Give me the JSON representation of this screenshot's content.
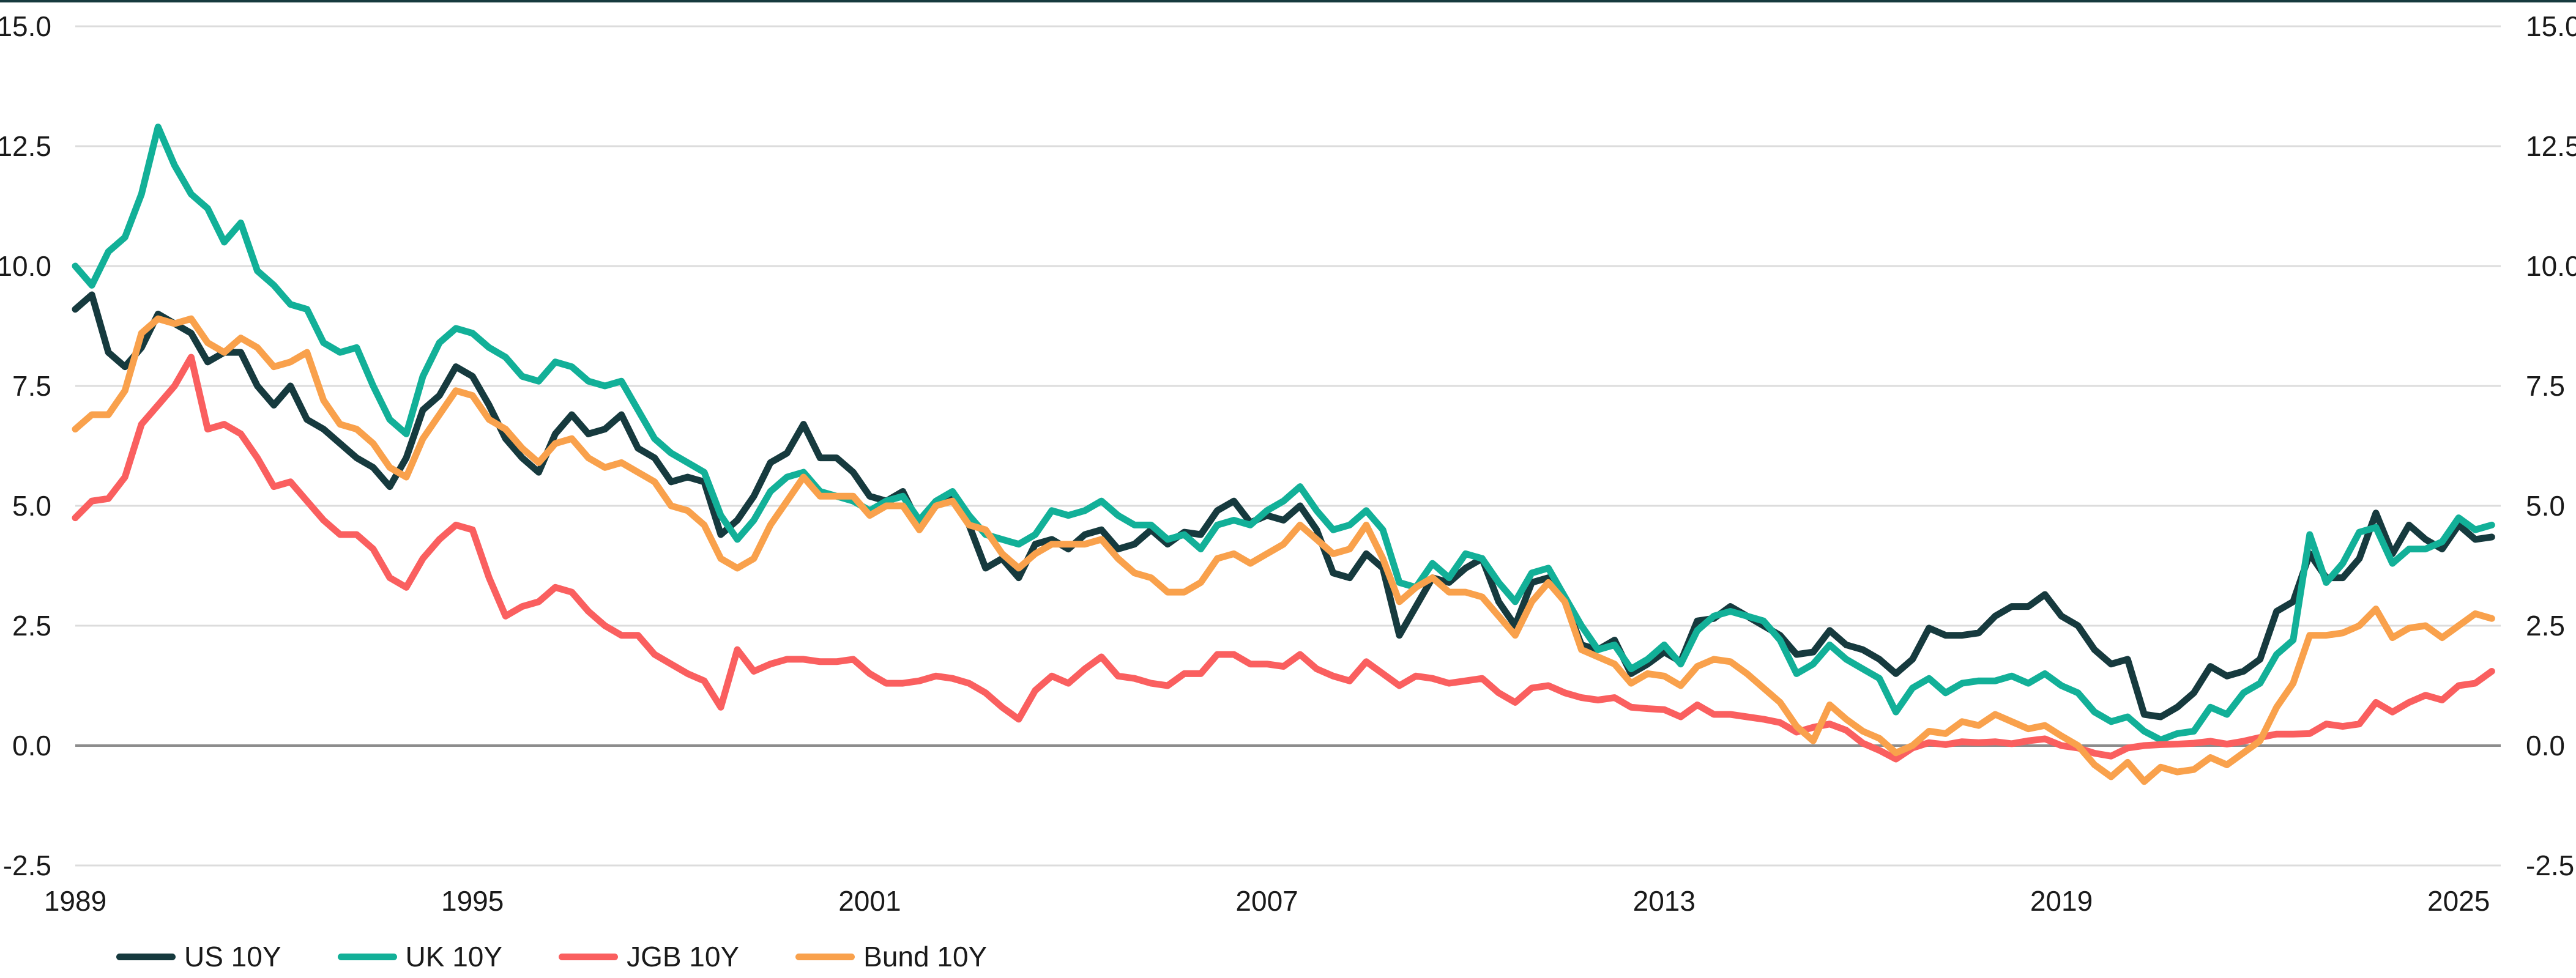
{
  "chart_data": {
    "type": "line",
    "title": "",
    "xlabel": "",
    "ylabel": "",
    "grid": true,
    "legend_position": "bottom-left",
    "x_axis": {
      "tick_years": [
        1989,
        1995,
        2001,
        2007,
        2013,
        2019,
        2025
      ],
      "range": [
        1989,
        2025.6
      ]
    },
    "y_axis": {
      "tick_values": [
        15.0,
        12.5,
        10.0,
        7.5,
        5.0,
        2.5,
        0.0,
        -2.5
      ],
      "tick_labels": [
        "15.0",
        "12.5",
        "10.0",
        "7.5",
        "5.0",
        "2.5",
        "0.0",
        "-2.5"
      ],
      "range": [
        -2.5,
        15.0
      ],
      "sides": "both",
      "zero_line": true
    },
    "x_start": 1989.0,
    "x_step": 0.25,
    "series": [
      {
        "name": "US 10Y",
        "color": "#163a3e",
        "values": [
          9.1,
          9.4,
          8.2,
          7.9,
          8.3,
          9.0,
          8.8,
          8.6,
          8.0,
          8.2,
          8.2,
          7.5,
          7.1,
          7.5,
          6.8,
          6.6,
          6.3,
          6.0,
          5.8,
          5.4,
          6.0,
          7.0,
          7.3,
          7.9,
          7.7,
          7.1,
          6.4,
          6.0,
          5.7,
          6.5,
          6.9,
          6.5,
          6.6,
          6.9,
          6.2,
          6.0,
          5.5,
          5.6,
          5.5,
          4.4,
          4.7,
          5.2,
          5.9,
          6.1,
          6.7,
          6.0,
          6.0,
          5.7,
          5.2,
          5.1,
          5.3,
          4.6,
          5.0,
          5.2,
          4.6,
          3.7,
          3.9,
          3.5,
          4.2,
          4.3,
          4.1,
          4.4,
          4.5,
          4.1,
          4.2,
          4.5,
          4.2,
          4.45,
          4.4,
          4.9,
          5.1,
          4.65,
          4.8,
          4.7,
          5.0,
          4.5,
          3.6,
          3.5,
          4.0,
          3.7,
          2.3,
          2.9,
          3.5,
          3.4,
          3.7,
          3.9,
          3.0,
          2.5,
          3.4,
          3.5,
          3.0,
          2.1,
          2.0,
          2.2,
          1.5,
          1.7,
          1.95,
          1.75,
          2.6,
          2.65,
          2.9,
          2.7,
          2.5,
          2.3,
          1.9,
          1.95,
          2.4,
          2.1,
          2.0,
          1.8,
          1.5,
          1.8,
          2.45,
          2.3,
          2.3,
          2.35,
          2.7,
          2.9,
          2.9,
          3.15,
          2.7,
          2.5,
          2.0,
          1.7,
          1.8,
          0.65,
          0.6,
          0.8,
          1.1,
          1.65,
          1.45,
          1.55,
          1.8,
          2.8,
          3.0,
          4.0,
          3.5,
          3.5,
          3.9,
          4.85,
          4.0,
          4.6,
          4.3,
          4.1,
          4.6,
          4.3,
          4.35
        ]
      },
      {
        "name": "UK 10Y",
        "color": "#12b098",
        "values": [
          10.0,
          9.6,
          10.3,
          10.6,
          11.5,
          12.9,
          12.1,
          11.5,
          11.2,
          10.5,
          10.9,
          9.9,
          9.6,
          9.2,
          9.1,
          8.4,
          8.2,
          8.3,
          7.5,
          6.8,
          6.5,
          7.7,
          8.4,
          8.7,
          8.6,
          8.3,
          8.1,
          7.7,
          7.6,
          8.0,
          7.9,
          7.6,
          7.5,
          7.6,
          7.0,
          6.4,
          6.1,
          5.9,
          5.7,
          4.8,
          4.3,
          4.7,
          5.3,
          5.6,
          5.7,
          5.3,
          5.2,
          5.1,
          4.9,
          5.1,
          5.2,
          4.7,
          5.1,
          5.3,
          4.8,
          4.4,
          4.3,
          4.2,
          4.4,
          4.9,
          4.8,
          4.9,
          5.1,
          4.8,
          4.6,
          4.6,
          4.3,
          4.4,
          4.1,
          4.6,
          4.7,
          4.6,
          4.9,
          5.1,
          5.4,
          4.9,
          4.5,
          4.6,
          4.9,
          4.5,
          3.4,
          3.3,
          3.8,
          3.5,
          4.0,
          3.9,
          3.4,
          3.0,
          3.6,
          3.7,
          3.1,
          2.5,
          2.0,
          2.1,
          1.6,
          1.8,
          2.1,
          1.7,
          2.4,
          2.7,
          2.8,
          2.7,
          2.6,
          2.2,
          1.5,
          1.7,
          2.1,
          1.8,
          1.6,
          1.4,
          0.7,
          1.2,
          1.4,
          1.1,
          1.3,
          1.35,
          1.35,
          1.45,
          1.3,
          1.5,
          1.25,
          1.1,
          0.7,
          0.5,
          0.6,
          0.3,
          0.12,
          0.25,
          0.3,
          0.8,
          0.65,
          1.1,
          1.3,
          1.9,
          2.2,
          4.4,
          3.4,
          3.8,
          4.45,
          4.55,
          3.8,
          4.1,
          4.1,
          4.25,
          4.75,
          4.5,
          4.6
        ]
      },
      {
        "name": "JGB 10Y",
        "color": "#fa5f5f",
        "values": [
          4.75,
          5.1,
          5.15,
          5.6,
          6.7,
          7.1,
          7.5,
          8.1,
          6.6,
          6.7,
          6.5,
          6.0,
          5.4,
          5.5,
          5.1,
          4.7,
          4.4,
          4.4,
          4.1,
          3.5,
          3.3,
          3.9,
          4.3,
          4.6,
          4.5,
          3.5,
          2.7,
          2.9,
          3.0,
          3.3,
          3.2,
          2.8,
          2.5,
          2.3,
          2.3,
          1.9,
          1.7,
          1.5,
          1.35,
          0.8,
          2.0,
          1.55,
          1.7,
          1.8,
          1.8,
          1.75,
          1.75,
          1.8,
          1.5,
          1.3,
          1.3,
          1.35,
          1.45,
          1.4,
          1.3,
          1.1,
          0.8,
          0.55,
          1.15,
          1.45,
          1.3,
          1.6,
          1.85,
          1.45,
          1.4,
          1.3,
          1.25,
          1.5,
          1.5,
          1.9,
          1.9,
          1.7,
          1.7,
          1.65,
          1.9,
          1.6,
          1.45,
          1.35,
          1.75,
          1.5,
          1.25,
          1.45,
          1.4,
          1.3,
          1.35,
          1.4,
          1.1,
          0.9,
          1.2,
          1.25,
          1.1,
          1.0,
          0.95,
          1.0,
          0.8,
          0.77,
          0.75,
          0.6,
          0.85,
          0.65,
          0.65,
          0.6,
          0.55,
          0.48,
          0.28,
          0.38,
          0.45,
          0.32,
          0.05,
          -0.1,
          -0.28,
          -0.05,
          0.06,
          0.02,
          0.08,
          0.06,
          0.08,
          0.04,
          0.1,
          0.14,
          0.0,
          -0.05,
          -0.16,
          -0.22,
          -0.05,
          0.0,
          0.02,
          0.03,
          0.05,
          0.09,
          0.03,
          0.09,
          0.17,
          0.24,
          0.24,
          0.25,
          0.45,
          0.4,
          0.45,
          0.9,
          0.7,
          0.9,
          1.05,
          0.95,
          1.25,
          1.3,
          1.55
        ]
      },
      {
        "name": "Bund 10Y",
        "color": "#f9a14c",
        "values": [
          6.6,
          6.9,
          6.9,
          7.4,
          8.6,
          8.9,
          8.8,
          8.9,
          8.4,
          8.2,
          8.5,
          8.3,
          7.9,
          8.0,
          8.2,
          7.2,
          6.7,
          6.6,
          6.3,
          5.8,
          5.6,
          6.4,
          6.9,
          7.4,
          7.3,
          6.8,
          6.6,
          6.2,
          5.9,
          6.3,
          6.4,
          6.0,
          5.8,
          5.9,
          5.7,
          5.5,
          5.0,
          4.9,
          4.6,
          3.9,
          3.7,
          3.9,
          4.6,
          5.1,
          5.6,
          5.2,
          5.2,
          5.2,
          4.8,
          5.0,
          5.0,
          4.5,
          5.0,
          5.1,
          4.6,
          4.5,
          4.0,
          3.7,
          4.0,
          4.2,
          4.2,
          4.2,
          4.3,
          3.9,
          3.6,
          3.5,
          3.2,
          3.2,
          3.4,
          3.9,
          4.0,
          3.8,
          4.0,
          4.2,
          4.6,
          4.3,
          4.0,
          4.1,
          4.6,
          3.9,
          3.0,
          3.3,
          3.5,
          3.2,
          3.2,
          3.1,
          2.7,
          2.3,
          3.0,
          3.4,
          3.0,
          2.0,
          1.85,
          1.7,
          1.3,
          1.5,
          1.45,
          1.25,
          1.65,
          1.8,
          1.75,
          1.5,
          1.2,
          0.9,
          0.4,
          0.1,
          0.85,
          0.55,
          0.3,
          0.15,
          -0.15,
          0.0,
          0.3,
          0.25,
          0.5,
          0.42,
          0.65,
          0.5,
          0.35,
          0.42,
          0.2,
          0.0,
          -0.4,
          -0.65,
          -0.35,
          -0.75,
          -0.45,
          -0.55,
          -0.5,
          -0.25,
          -0.4,
          -0.15,
          0.1,
          0.8,
          1.3,
          2.3,
          2.3,
          2.35,
          2.5,
          2.85,
          2.25,
          2.45,
          2.5,
          2.25,
          2.5,
          2.75,
          2.65
        ]
      }
    ]
  },
  "colors": {
    "background": "#ffffff",
    "grid_line": "#dcdcdc",
    "zero_line": "#8c8c8c",
    "text": "#1a1a1a",
    "top_border": "#163a3e"
  },
  "legend": {
    "items": [
      "US 10Y",
      "UK 10Y",
      "JGB 10Y",
      "Bund 10Y"
    ]
  }
}
